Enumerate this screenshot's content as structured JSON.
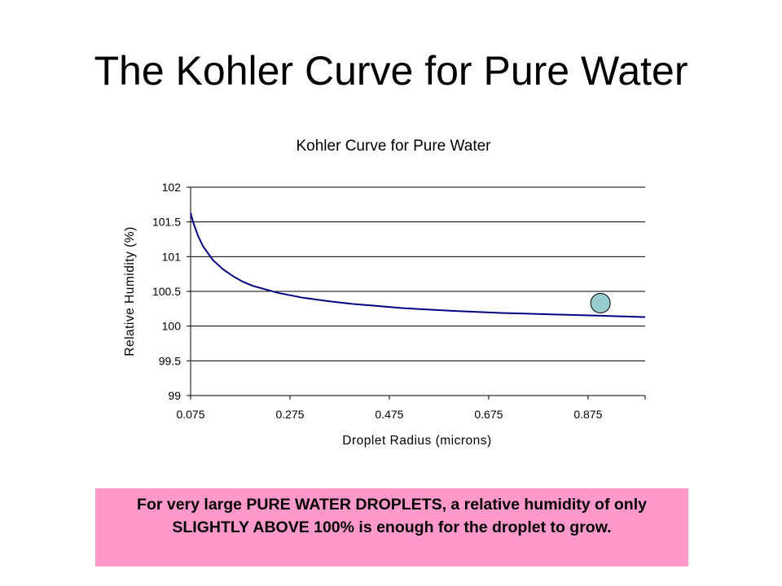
{
  "slide": {
    "title": "The Kohler Curve for Pure Water",
    "callout_text": "For very large PURE WATER DROPLETS, a relative humidity of only SLIGHTLY ABOVE 100% is enough for the droplet to grow."
  },
  "colors": {
    "curve": "#000080",
    "marker_fill": "#99cccc",
    "callout_bg": "#ff99cc",
    "grid": "#000000"
  },
  "chart_data": {
    "type": "line",
    "title": "Kohler Curve for Pure Water",
    "xlabel": "Droplet Radius (microns)",
    "ylabel": "Relative Humidity (%)",
    "xlim": [
      0.075,
      0.99
    ],
    "ylim": [
      99,
      102
    ],
    "x_ticks": [
      "0.075",
      "0.275",
      "0.475",
      "0.675",
      "0.875"
    ],
    "x_tick_values": [
      0.075,
      0.275,
      0.475,
      0.675,
      0.875
    ],
    "y_ticks": [
      "102",
      "101.5",
      "101",
      "100.5",
      "100",
      "99.5",
      "99"
    ],
    "y_tick_values": [
      102,
      101.5,
      101,
      100.5,
      100,
      99.5,
      99
    ],
    "grid": "horizontal",
    "legend": "none",
    "series": [
      {
        "x": [
          0.075,
          0.08,
          0.09,
          0.1,
          0.12,
          0.14,
          0.16,
          0.18,
          0.2,
          0.25,
          0.3,
          0.35,
          0.4,
          0.45,
          0.5,
          0.6,
          0.7,
          0.8,
          0.9,
          0.99
        ],
        "y": [
          101.63,
          101.5,
          101.3,
          101.15,
          100.95,
          100.82,
          100.72,
          100.64,
          100.58,
          100.48,
          100.41,
          100.36,
          100.32,
          100.29,
          100.26,
          100.22,
          100.19,
          100.17,
          100.15,
          100.13
        ]
      }
    ],
    "annotations": [
      {
        "type": "circle-marker",
        "x": 0.9,
        "y": 100.33
      }
    ]
  }
}
